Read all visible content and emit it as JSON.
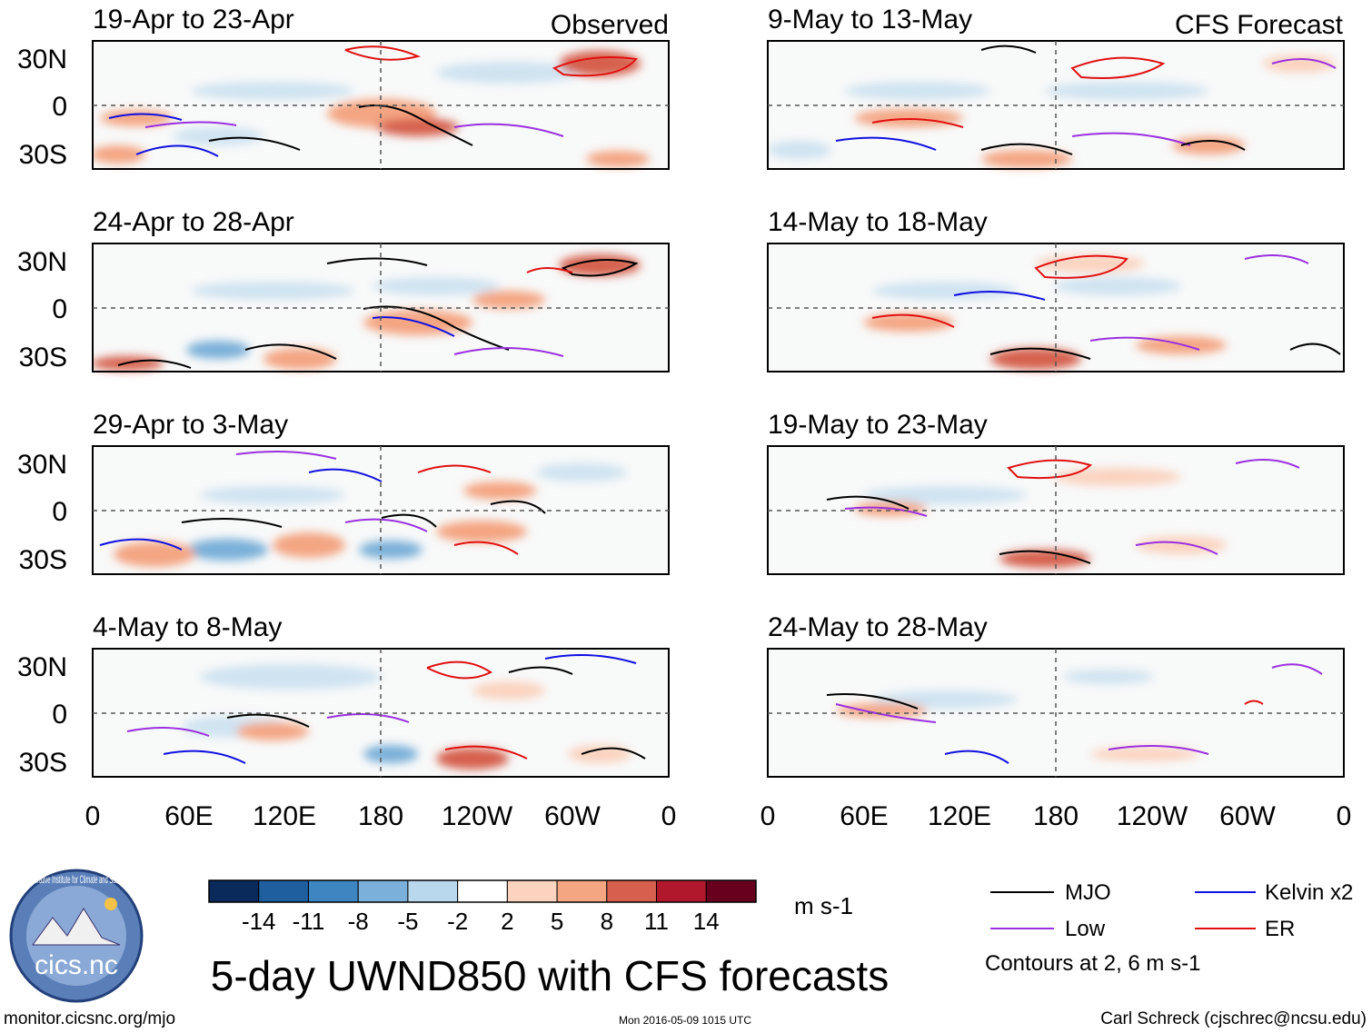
{
  "figure": {
    "title": "5-day UWND850 with CFS forecasts",
    "left_column_label": "Observed",
    "right_column_label": "CFS Forecast"
  },
  "panels": {
    "observed": [
      {
        "period": "19-Apr to 23-Apr"
      },
      {
        "period": "24-Apr to 28-Apr"
      },
      {
        "period": "29-Apr to 3-May"
      },
      {
        "period": "4-May to 8-May"
      }
    ],
    "forecast": [
      {
        "period": "9-May to 13-May"
      },
      {
        "period": "14-May to 18-May"
      },
      {
        "period": "19-May to 23-May"
      },
      {
        "period": "24-May to 28-May"
      }
    ]
  },
  "axes": {
    "lat_labels": [
      "30N",
      "0",
      "30S"
    ],
    "lon_labels": [
      "0",
      "60E",
      "120E",
      "180",
      "120W",
      "60W",
      "0"
    ]
  },
  "colorbar": {
    "ticks": [
      "-14",
      "-11",
      "-8",
      "-5",
      "-2",
      "2",
      "5",
      "8",
      "11",
      "14"
    ],
    "colors": [
      "#0b2a5c",
      "#1f5fa0",
      "#3d86c2",
      "#7ab0d9",
      "#b9d8ee",
      "#ffffff",
      "#fbd3bf",
      "#f4a582",
      "#d6604d",
      "#b2182b",
      "#67001f"
    ],
    "units": "m s-1"
  },
  "legend": {
    "items": [
      {
        "label": "MJO",
        "color": "#000000"
      },
      {
        "label": "Kelvin x2",
        "color": "#1010e0"
      },
      {
        "label": "Low",
        "color": "#9a30e0"
      },
      {
        "label": "ER",
        "color": "#e01010"
      }
    ],
    "contours_note": "Contours at 2, 6 m s-1"
  },
  "logo": {
    "text": "cics.nc",
    "ring_text": "Cooperative Institute for Climate and Satellites"
  },
  "footer": {
    "left": "monitor.cicsnc.org/mjo",
    "center": "Mon 2016-05-09 1015 UTC",
    "right": "Carl Schreck (cjschrec@ncsu.edu)"
  }
}
